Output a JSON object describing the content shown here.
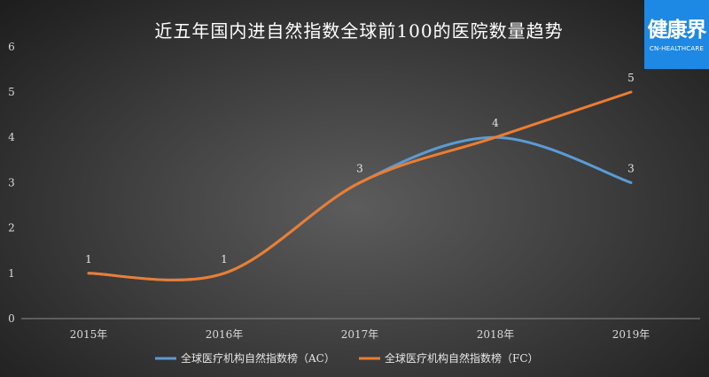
{
  "logo": {
    "name_cn": "健康界",
    "name_en": "CN-HEALTHCARE"
  },
  "chart_data": {
    "type": "line",
    "title": "近五年国内进自然指数全球前100的医院数量趋势",
    "categories": [
      "2015年",
      "2016年",
      "2017年",
      "2018年",
      "2019年"
    ],
    "ylim": [
      0,
      6
    ],
    "yticks": [
      0,
      1,
      2,
      3,
      4,
      5,
      6
    ],
    "grid": false,
    "legend_position": "bottom",
    "series": [
      {
        "name": "全球医疗机构自然指数榜（AC）",
        "color": "#5b9bd5",
        "values": [
          1,
          1,
          3,
          4,
          3
        ]
      },
      {
        "name": "全球医疗机构自然指数榜（FC）",
        "color": "#ed7d31",
        "values": [
          1,
          1,
          3,
          4,
          5
        ]
      }
    ],
    "data_labels": [
      {
        "series": 1,
        "index": 0,
        "text": "1"
      },
      {
        "series": 1,
        "index": 1,
        "text": "1"
      },
      {
        "series": 1,
        "index": 2,
        "text": "3"
      },
      {
        "series": 1,
        "index": 3,
        "text": "4"
      },
      {
        "series": 0,
        "index": 4,
        "text": "3"
      },
      {
        "series": 1,
        "index": 4,
        "text": "5"
      }
    ]
  }
}
